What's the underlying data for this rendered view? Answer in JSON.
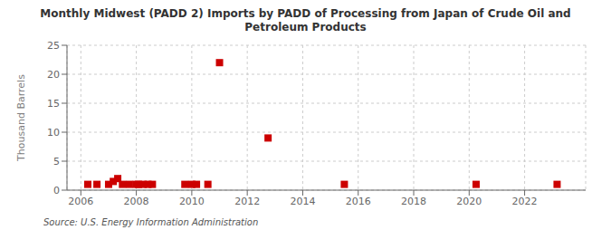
{
  "chart_data": {
    "type": "scatter",
    "title": "Monthly Midwest (PADD 2) Imports by PADD of Processing from Japan of Crude Oil and\nPetroleum Products",
    "y_label": "Thousand Barrels",
    "annotation": "Source: U.S. Energy Information Administration",
    "x": [
      2006.25,
      2006.58,
      2007.0,
      2007.17,
      2007.33,
      2007.5,
      2007.75,
      2008.0,
      2008.08,
      2008.25,
      2008.42,
      2008.58,
      2009.75,
      2010.0,
      2010.17,
      2010.58,
      2011.0,
      2012.75,
      2015.5,
      2020.25,
      2023.17
    ],
    "values": [
      1.0,
      1.0,
      1.0,
      1.5,
      2.0,
      1.0,
      1.0,
      1.0,
      1.0,
      1.0,
      1.0,
      1.0,
      1.0,
      1.0,
      1.0,
      1.0,
      22.0,
      9.0,
      1.0,
      1.0,
      1.0
    ],
    "color": "#cc0000",
    "marker": "square",
    "xlim": [
      2005.5,
      2024.2
    ],
    "ylim": [
      0,
      25
    ],
    "xticks": [
      2006,
      2008,
      2010,
      2012,
      2014,
      2016,
      2018,
      2020,
      2022
    ],
    "yticks": [
      0,
      5,
      10,
      15,
      20,
      25
    ],
    "grid": true
  }
}
